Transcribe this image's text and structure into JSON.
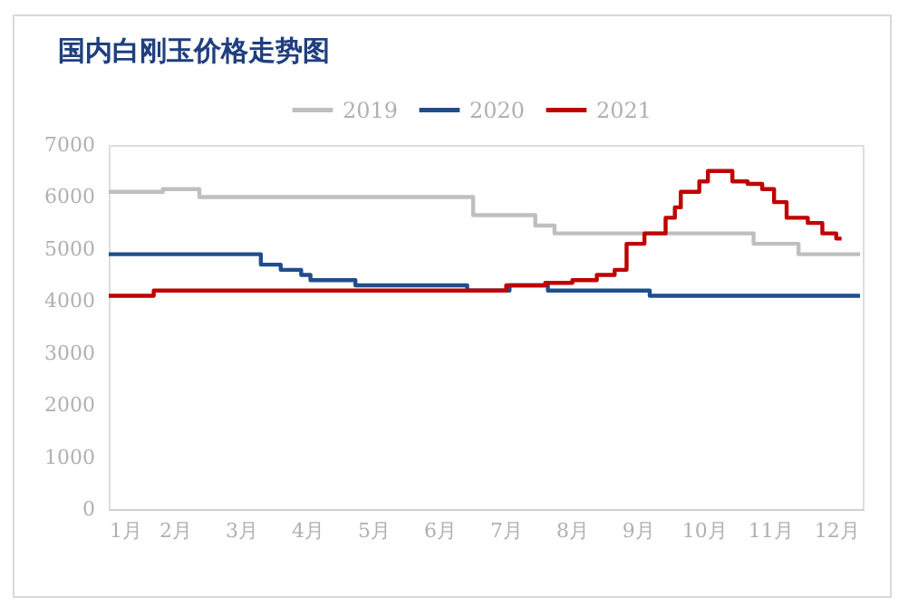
{
  "chart_data": {
    "type": "step",
    "title": "国内白刚玉价格走势图",
    "legend": "top",
    "grid": false,
    "line_style": "solid",
    "marker": "none",
    "xlim": [
      1,
      12.4
    ],
    "ylim": [
      0,
      7000
    ],
    "xticks": [
      {
        "value": 1,
        "label": "1月"
      },
      {
        "value": 2,
        "label": "2月"
      },
      {
        "value": 3,
        "label": "3月"
      },
      {
        "value": 4,
        "label": "4月"
      },
      {
        "value": 5,
        "label": "5月"
      },
      {
        "value": 6,
        "label": "6月"
      },
      {
        "value": 7,
        "label": "7月"
      },
      {
        "value": 8,
        "label": "8月"
      },
      {
        "value": 9,
        "label": "9月"
      },
      {
        "value": 10,
        "label": "10月"
      },
      {
        "value": 11,
        "label": "11月"
      },
      {
        "value": 12,
        "label": "12月"
      }
    ],
    "yticks": [
      0,
      1000,
      2000,
      3000,
      4000,
      5000,
      6000,
      7000
    ],
    "series": [
      {
        "name": "2019",
        "color": "#bfbfbf",
        "x": [
          1,
          1.82,
          2.37,
          6.51,
          7.45,
          7.74,
          10.75,
          11.43,
          12.36
        ],
        "values": [
          6100,
          6150,
          6000,
          5650,
          5450,
          5300,
          5100,
          4900,
          4900
        ]
      },
      {
        "name": "2020",
        "color": "#1f4e8c",
        "x": [
          1,
          3.3,
          3.6,
          3.91,
          4.05,
          4.73,
          6.42,
          7.06,
          7.64,
          9.18,
          12.36
        ],
        "values": [
          4900,
          4700,
          4600,
          4500,
          4400,
          4300,
          4200,
          4300,
          4200,
          4100,
          4100
        ]
      },
      {
        "name": "2021",
        "color": "#c00000",
        "x": [
          1,
          1.68,
          7.01,
          7.6,
          8.01,
          8.38,
          8.65,
          8.83,
          9.1,
          9.42,
          9.56,
          9.65,
          9.93,
          10.06,
          10.43,
          10.66,
          10.88,
          11.06,
          11.25,
          11.57,
          11.79,
          12.0,
          12.08
        ],
        "values": [
          4100,
          4200,
          4300,
          4350,
          4400,
          4500,
          4600,
          5100,
          5300,
          5600,
          5800,
          6100,
          6300,
          6500,
          6300,
          6250,
          6150,
          5900,
          5600,
          5500,
          5300,
          5200,
          5200
        ]
      }
    ]
  }
}
